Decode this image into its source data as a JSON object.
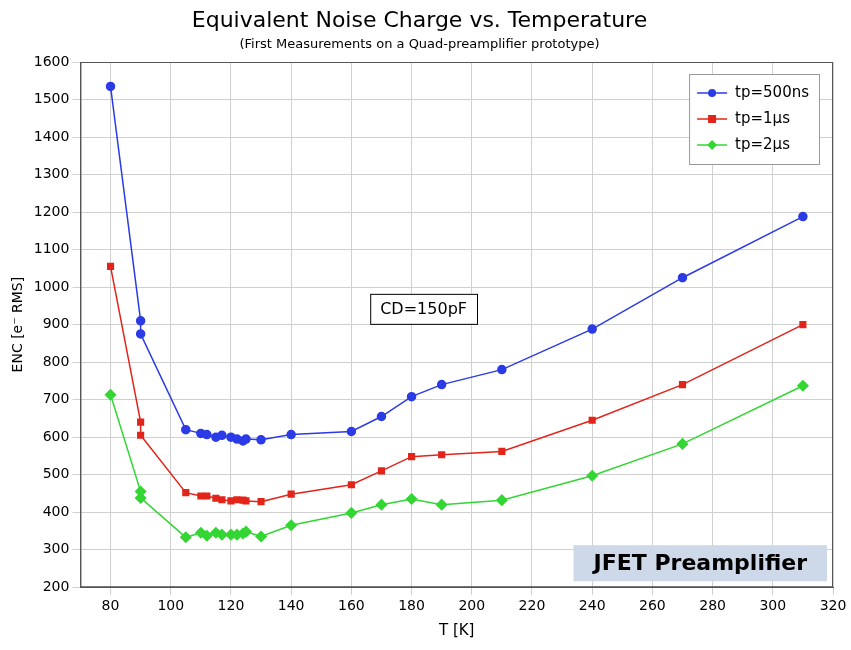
{
  "chart_data": {
    "type": "line",
    "title": "Equivalent Noise Charge vs. Temperature",
    "subtitle": "(First Measurements on a Quad-preamplifier prototype)",
    "x_label": "T [K]",
    "y_label": "ENC [e⁻ RMS]",
    "x": [
      80,
      90,
      90,
      105,
      110,
      112,
      115,
      117,
      120,
      122,
      124,
      125,
      130,
      140,
      160,
      170,
      180,
      190,
      210,
      240,
      270,
      310
    ],
    "series": [
      {
        "name": "tp=500ns",
        "color": "#2b3be6",
        "marker": "circle",
        "values": [
          1535,
          910,
          875,
          620,
          610,
          607,
          600,
          605,
          600,
          595,
          590,
          595,
          593,
          607,
          615,
          655,
          708,
          740,
          780,
          888,
          1025,
          1188
        ]
      },
      {
        "name": "tp=1μs",
        "color": "#e3241b",
        "marker": "square",
        "values": [
          1055,
          640,
          605,
          452,
          443,
          443,
          437,
          433,
          430,
          433,
          432,
          430,
          428,
          448,
          473,
          510,
          548,
          553,
          562,
          645,
          740,
          900
        ]
      },
      {
        "name": "tp=2μs",
        "color": "#33d633",
        "marker": "diamond",
        "values": [
          713,
          455,
          438,
          333,
          345,
          337,
          345,
          340,
          340,
          340,
          343,
          348,
          335,
          365,
          398,
          420,
          435,
          420,
          432,
          497,
          582,
          737
        ]
      }
    ],
    "xlim": [
      70,
      320
    ],
    "xticks": [
      80,
      100,
      120,
      140,
      160,
      180,
      200,
      220,
      240,
      260,
      280,
      300,
      320
    ],
    "ylim": [
      200,
      1600
    ],
    "yticks": [
      200,
      300,
      400,
      500,
      600,
      700,
      800,
      900,
      1000,
      1100,
      1200,
      1300,
      1400,
      1500,
      1600
    ],
    "grid": true,
    "legend": "top-right",
    "annotations": [
      "CD=150pF",
      "JFET Preamplifier"
    ]
  }
}
